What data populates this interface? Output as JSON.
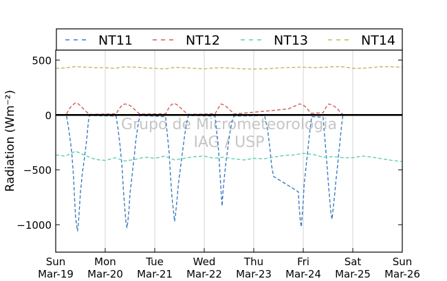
{
  "chart_data": {
    "type": "line",
    "ylabel": "Radiation (Wm⁻²)",
    "ylim": [
      -1250,
      590
    ],
    "yticks": [
      500,
      0,
      -500,
      -1000
    ],
    "ytick_labels": [
      "500",
      "0",
      "−500",
      "−1000"
    ],
    "xlim": [
      0,
      7
    ],
    "xticks": [
      0,
      1,
      2,
      3,
      4,
      5,
      6,
      7
    ],
    "xtick_labels": [
      [
        "Sun",
        "Mar-19"
      ],
      [
        "Mon",
        "Mar-20"
      ],
      [
        "Tue",
        "Mar-21"
      ],
      [
        "Wed",
        "Mar-22"
      ],
      [
        "Thu",
        "Mar-23"
      ],
      [
        "Fri",
        "Mar-24"
      ],
      [
        "Sat",
        "Mar-25"
      ],
      [
        "Sun",
        "Mar-26"
      ]
    ],
    "x_unit": "days since Sun Mar-19 00:00",
    "grid": "vertical",
    "zero_line": true,
    "legend_placement": "top, outside plot",
    "watermark": [
      "Grupo de Micrometeorologia",
      "IAG / USP"
    ],
    "series": [
      {
        "name": "NT11",
        "color": "#3a7bbf",
        "points": [
          [
            0.22,
            -10
          ],
          [
            0.26,
            -120
          ],
          [
            0.3,
            -250
          ],
          [
            0.33,
            -380
          ],
          [
            0.36,
            -560
          ],
          [
            0.38,
            -760
          ],
          [
            0.4,
            -920
          ],
          [
            0.42,
            -1000
          ],
          [
            0.44,
            -1060
          ],
          [
            0.46,
            -980
          ],
          [
            0.48,
            -840
          ],
          [
            0.5,
            -700
          ],
          [
            0.52,
            -620
          ],
          [
            0.54,
            -520
          ],
          [
            0.56,
            -460
          ],
          [
            0.58,
            -390
          ],
          [
            0.6,
            -320
          ],
          [
            0.62,
            -250
          ],
          [
            0.64,
            -160
          ],
          [
            0.66,
            -60
          ],
          [
            0.68,
            -5
          ],
          [
            1.22,
            -10
          ],
          [
            1.26,
            -130
          ],
          [
            1.3,
            -280
          ],
          [
            1.34,
            -480
          ],
          [
            1.37,
            -700
          ],
          [
            1.4,
            -880
          ],
          [
            1.42,
            -980
          ],
          [
            1.44,
            -1030
          ],
          [
            1.46,
            -960
          ],
          [
            1.48,
            -860
          ],
          [
            1.5,
            -720
          ],
          [
            1.53,
            -600
          ],
          [
            1.56,
            -480
          ],
          [
            1.59,
            -360
          ],
          [
            1.62,
            -230
          ],
          [
            1.66,
            -100
          ],
          [
            1.7,
            -5
          ],
          [
            2.22,
            -15
          ],
          [
            2.25,
            -160
          ],
          [
            2.29,
            -340
          ],
          [
            2.32,
            -560
          ],
          [
            2.35,
            -760
          ],
          [
            2.38,
            -880
          ],
          [
            2.4,
            -970
          ],
          [
            2.42,
            -910
          ],
          [
            2.45,
            -770
          ],
          [
            2.48,
            -620
          ],
          [
            2.52,
            -480
          ],
          [
            2.56,
            -340
          ],
          [
            2.6,
            -200
          ],
          [
            2.64,
            -80
          ],
          [
            2.68,
            -5
          ],
          [
            3.22,
            -10
          ],
          [
            3.25,
            -150
          ],
          [
            3.29,
            -330
          ],
          [
            3.32,
            -540
          ],
          [
            3.34,
            -700
          ],
          [
            3.36,
            -830
          ],
          [
            3.38,
            -690
          ],
          [
            3.41,
            -550
          ],
          [
            3.44,
            -420
          ],
          [
            3.48,
            -290
          ],
          [
            3.52,
            -160
          ],
          [
            3.56,
            -60
          ],
          [
            3.6,
            -10
          ],
          [
            4.22,
            -5
          ],
          [
            4.28,
            -140
          ],
          [
            4.33,
            -320
          ],
          [
            4.36,
            -460
          ],
          [
            4.4,
            -560
          ],
          [
            4.9,
            -700
          ],
          [
            4.92,
            -850
          ],
          [
            4.94,
            -960
          ],
          [
            4.96,
            -1020
          ],
          [
            4.98,
            -900
          ],
          [
            5.0,
            -780
          ],
          [
            5.02,
            -620
          ],
          [
            5.05,
            -500
          ],
          [
            5.08,
            -370
          ],
          [
            5.11,
            -240
          ],
          [
            5.14,
            -120
          ],
          [
            5.17,
            -15
          ],
          [
            5.4,
            -20
          ],
          [
            5.44,
            -240
          ],
          [
            5.48,
            -460
          ],
          [
            5.51,
            -640
          ],
          [
            5.54,
            -800
          ],
          [
            5.56,
            -900
          ],
          [
            5.58,
            -950
          ],
          [
            5.6,
            -870
          ],
          [
            5.63,
            -740
          ],
          [
            5.66,
            -600
          ],
          [
            5.69,
            -470
          ],
          [
            5.72,
            -340
          ],
          [
            5.75,
            -200
          ],
          [
            5.78,
            -70
          ],
          [
            5.8,
            -5
          ]
        ]
      },
      {
        "name": "NT12",
        "color": "#cf5a55",
        "points": [
          [
            0.22,
            10
          ],
          [
            0.28,
            60
          ],
          [
            0.34,
            90
          ],
          [
            0.4,
            110
          ],
          [
            0.46,
            100
          ],
          [
            0.52,
            75
          ],
          [
            0.58,
            45
          ],
          [
            0.64,
            20
          ],
          [
            0.68,
            5
          ],
          [
            1.22,
            10
          ],
          [
            1.28,
            55
          ],
          [
            1.34,
            90
          ],
          [
            1.4,
            100
          ],
          [
            1.46,
            95
          ],
          [
            1.52,
            80
          ],
          [
            1.58,
            55
          ],
          [
            1.64,
            30
          ],
          [
            1.7,
            8
          ],
          [
            2.22,
            10
          ],
          [
            2.28,
            60
          ],
          [
            2.34,
            95
          ],
          [
            2.4,
            105
          ],
          [
            2.46,
            90
          ],
          [
            2.52,
            65
          ],
          [
            2.58,
            40
          ],
          [
            2.64,
            15
          ],
          [
            2.68,
            5
          ],
          [
            3.22,
            10
          ],
          [
            3.28,
            60
          ],
          [
            3.34,
            100
          ],
          [
            3.4,
            90
          ],
          [
            3.46,
            70
          ],
          [
            3.52,
            45
          ],
          [
            3.58,
            20
          ],
          [
            3.6,
            8
          ],
          [
            4.36,
            40
          ],
          [
            4.7,
            55
          ],
          [
            4.85,
            85
          ],
          [
            4.92,
            100
          ],
          [
            4.98,
            95
          ],
          [
            5.04,
            75
          ],
          [
            5.1,
            45
          ],
          [
            5.16,
            15
          ],
          [
            5.4,
            20
          ],
          [
            5.46,
            70
          ],
          [
            5.52,
            100
          ],
          [
            5.58,
            90
          ],
          [
            5.64,
            75
          ],
          [
            5.7,
            50
          ],
          [
            5.76,
            20
          ],
          [
            5.8,
            5
          ]
        ]
      },
      {
        "name": "NT13",
        "color": "#5ecfa6",
        "points": [
          [
            0.0,
            -365
          ],
          [
            0.2,
            -375
          ],
          [
            0.4,
            -330
          ],
          [
            0.6,
            -370
          ],
          [
            0.8,
            -405
          ],
          [
            1.0,
            -415
          ],
          [
            1.2,
            -390
          ],
          [
            1.4,
            -420
          ],
          [
            1.6,
            -405
          ],
          [
            1.8,
            -385
          ],
          [
            2.0,
            -395
          ],
          [
            2.2,
            -375
          ],
          [
            2.4,
            -410
          ],
          [
            2.6,
            -395
          ],
          [
            2.8,
            -380
          ],
          [
            3.0,
            -375
          ],
          [
            3.2,
            -395
          ],
          [
            3.4,
            -385
          ],
          [
            3.6,
            -400
          ],
          [
            3.8,
            -410
          ],
          [
            4.0,
            -395
          ],
          [
            4.2,
            -400
          ],
          [
            4.4,
            -385
          ],
          [
            4.6,
            -370
          ],
          [
            4.8,
            -365
          ],
          [
            5.0,
            -350
          ],
          [
            5.2,
            -360
          ],
          [
            5.4,
            -385
          ],
          [
            5.6,
            -380
          ],
          [
            5.8,
            -390
          ],
          [
            6.0,
            -390
          ],
          [
            6.2,
            -375
          ],
          [
            6.4,
            -385
          ],
          [
            6.6,
            -400
          ],
          [
            6.8,
            -415
          ],
          [
            7.0,
            -425
          ]
        ]
      },
      {
        "name": "NT14",
        "color": "#c2b55e",
        "points": [
          [
            0.0,
            425
          ],
          [
            0.2,
            428
          ],
          [
            0.4,
            440
          ],
          [
            0.6,
            435
          ],
          [
            0.8,
            430
          ],
          [
            1.0,
            430
          ],
          [
            1.2,
            425
          ],
          [
            1.4,
            438
          ],
          [
            1.6,
            435
          ],
          [
            1.8,
            428
          ],
          [
            2.0,
            425
          ],
          [
            2.2,
            420
          ],
          [
            2.4,
            432
          ],
          [
            2.6,
            430
          ],
          [
            2.8,
            425
          ],
          [
            3.0,
            420
          ],
          [
            3.2,
            428
          ],
          [
            3.4,
            430
          ],
          [
            3.6,
            425
          ],
          [
            3.8,
            420
          ],
          [
            4.0,
            418
          ],
          [
            4.2,
            420
          ],
          [
            4.4,
            425
          ],
          [
            4.6,
            430
          ],
          [
            4.8,
            432
          ],
          [
            5.0,
            435
          ],
          [
            5.2,
            430
          ],
          [
            5.4,
            432
          ],
          [
            5.6,
            440
          ],
          [
            5.8,
            438
          ],
          [
            6.0,
            425
          ],
          [
            6.2,
            425
          ],
          [
            6.4,
            432
          ],
          [
            6.6,
            440
          ],
          [
            6.8,
            438
          ],
          [
            7.0,
            435
          ]
        ]
      }
    ]
  }
}
